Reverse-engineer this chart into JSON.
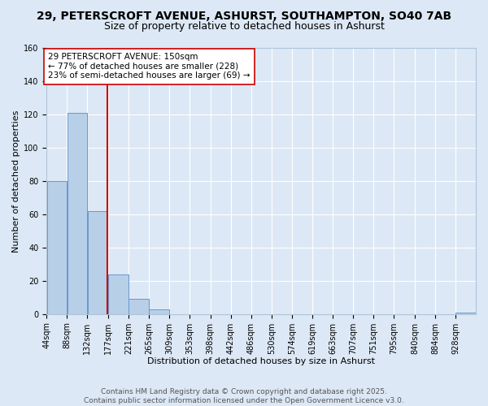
{
  "title_line1": "29, PETERSCROFT AVENUE, ASHURST, SOUTHAMPTON, SO40 7AB",
  "title_line2": "Size of property relative to detached houses in Ashurst",
  "xlabel": "Distribution of detached houses by size in Ashurst",
  "ylabel": "Number of detached properties",
  "bin_starts": [
    44,
    88,
    132,
    177,
    221,
    265,
    309,
    353,
    398,
    442,
    486,
    530,
    574,
    619,
    663,
    707,
    751,
    795,
    840,
    884,
    928
  ],
  "bar_values": [
    80,
    121,
    62,
    24,
    9,
    3,
    0,
    0,
    0,
    0,
    0,
    0,
    0,
    0,
    0,
    0,
    0,
    0,
    0,
    0,
    1
  ],
  "bar_color": "#b8cfe8",
  "bar_edgecolor": "#6699cc",
  "vline_x": 132,
  "vline_color": "#cc0000",
  "annotation_text": "29 PETERSCROFT AVENUE: 150sqm\n← 77% of detached houses are smaller (228)\n23% of semi-detached houses are larger (69) →",
  "annotation_box_edgecolor": "#cc0000",
  "annotation_box_facecolor": "white",
  "ylim": [
    0,
    160
  ],
  "yticks": [
    0,
    20,
    40,
    60,
    80,
    100,
    120,
    140,
    160
  ],
  "xlim_left": 44,
  "xlim_right": 972,
  "background_color": "#dce8f5",
  "plot_bg_color": "#dce8f5",
  "footer_text": "Contains HM Land Registry data © Crown copyright and database right 2025.\nContains public sector information licensed under the Open Government Licence v3.0.",
  "tick_labels": [
    "44sqm",
    "88sqm",
    "132sqm",
    "177sqm",
    "221sqm",
    "265sqm",
    "309sqm",
    "353sqm",
    "398sqm",
    "442sqm",
    "486sqm",
    "530sqm",
    "574sqm",
    "619sqm",
    "663sqm",
    "707sqm",
    "751sqm",
    "795sqm",
    "840sqm",
    "884sqm",
    "928sqm"
  ],
  "title1_fontsize": 10,
  "title2_fontsize": 9,
  "footer_fontsize": 6.5,
  "axis_label_fontsize": 8,
  "tick_fontsize": 7,
  "annotation_fontsize": 7.5
}
